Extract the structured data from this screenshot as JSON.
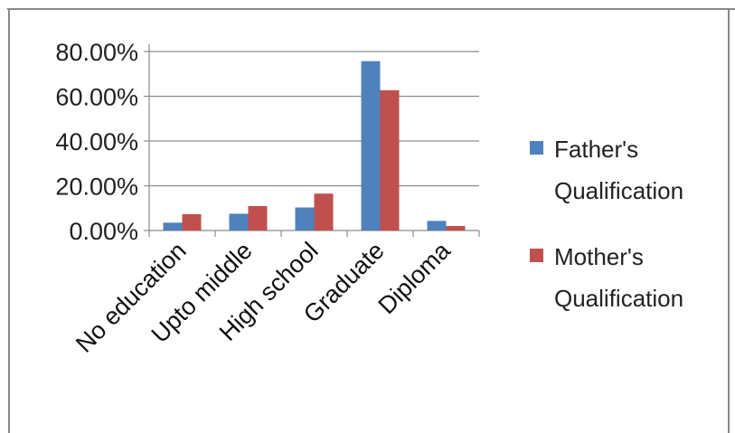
{
  "chart_data": {
    "type": "bar",
    "categories": [
      "No education",
      "Upto middle",
      "High school",
      "Graduate",
      "Diploma"
    ],
    "series": [
      {
        "name": "Father's Qualification",
        "color": "#4f81bd",
        "values": [
          3.5,
          7.5,
          10.3,
          75.7,
          4.3
        ]
      },
      {
        "name": "Mother's Qualification",
        "color": "#c0504d",
        "values": [
          7.3,
          10.9,
          16.5,
          62.7,
          2.0
        ]
      }
    ],
    "y_ticks": [
      "0.00%",
      "20.00%",
      "40.00%",
      "60.00%",
      "80.00%"
    ],
    "ylim": [
      0,
      80
    ],
    "grid": true,
    "legend_position": "right",
    "legend_lines": [
      [
        "Father's",
        "Qualification"
      ],
      [
        "Mother's",
        "Qualification"
      ]
    ]
  }
}
